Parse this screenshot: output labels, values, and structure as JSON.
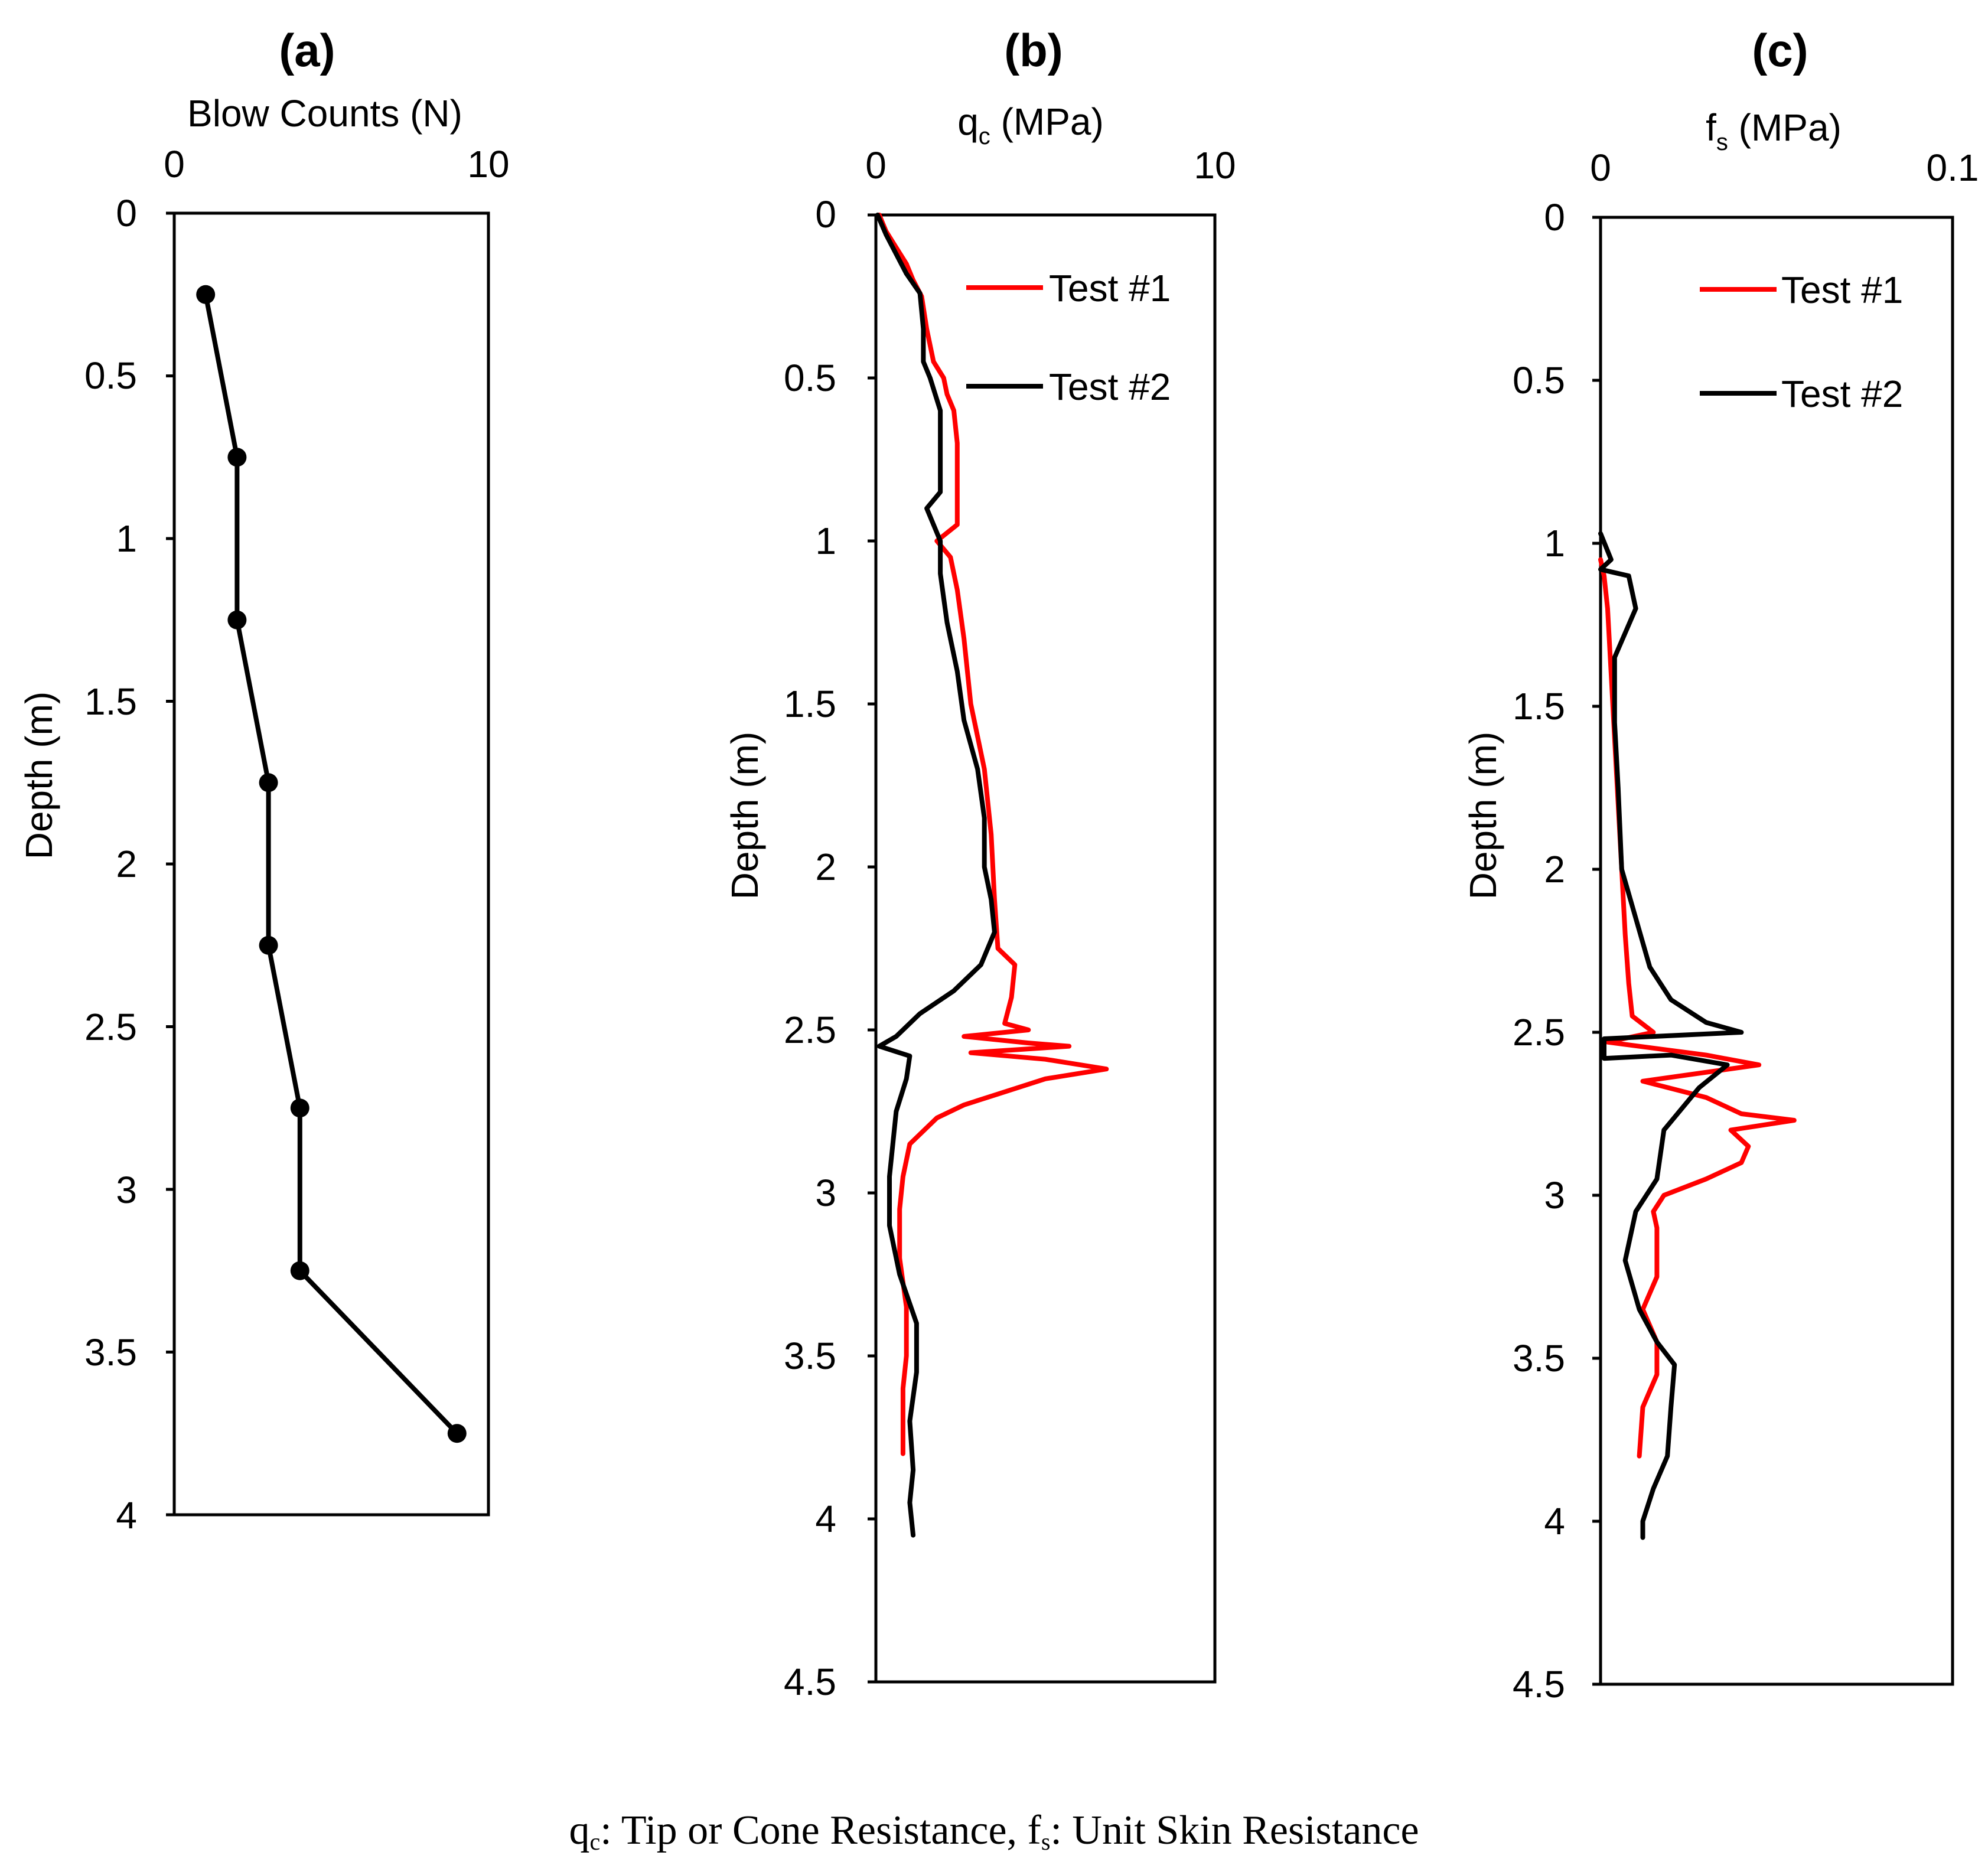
{
  "colors": {
    "test1": "#ff0000",
    "test2": "#000000",
    "axes": "#000000"
  },
  "caption": {
    "q_symbol": "q",
    "q_sub": "c",
    "mid": ": Tip or Cone Resistance, f",
    "f_sub": "s",
    "tail": ": Unit Skin Resistance"
  },
  "chart_data": [
    {
      "id": "a",
      "type": "line",
      "title": "(a)",
      "xlabel": "Blow Counts (N)",
      "ylabel": "Depth (m)",
      "xlim": [
        0,
        10
      ],
      "ylim": [
        4,
        0
      ],
      "xticks": [
        "0",
        "10"
      ],
      "yticks": [
        "0",
        "0.5",
        "1",
        "1.5",
        "2",
        "2.5",
        "3",
        "3.5",
        "4"
      ],
      "series": [
        {
          "name": "Blow Counts",
          "color": "#000000",
          "markers": true,
          "points": [
            [
              1,
              0.25
            ],
            [
              2,
              0.75
            ],
            [
              2,
              1.25
            ],
            [
              3,
              1.75
            ],
            [
              3,
              2.25
            ],
            [
              4,
              2.75
            ],
            [
              4,
              3.25
            ],
            [
              9,
              3.75
            ]
          ]
        }
      ]
    },
    {
      "id": "b",
      "type": "line",
      "title": "(b)",
      "xlabel_main": "q",
      "xlabel_sub": "c",
      "xlabel_unit": " (MPa)",
      "ylabel": "Depth (m)",
      "xlim": [
        0,
        10
      ],
      "ylim": [
        4.5,
        0
      ],
      "xticks": [
        "0",
        "10"
      ],
      "yticks": [
        "0",
        "0.5",
        "1",
        "1.5",
        "2",
        "2.5",
        "3",
        "3.5",
        "4",
        "4.5"
      ],
      "legend": [
        "Test #1",
        "Test #2"
      ],
      "legend_position": "top-right",
      "series": [
        {
          "name": "Test #1",
          "color": "#ff0000",
          "points": [
            [
              0.1,
              0.0
            ],
            [
              0.3,
              0.05
            ],
            [
              0.6,
              0.1
            ],
            [
              0.9,
              0.15
            ],
            [
              1.1,
              0.2
            ],
            [
              1.35,
              0.25
            ],
            [
              1.5,
              0.35
            ],
            [
              1.7,
              0.45
            ],
            [
              2.0,
              0.5
            ],
            [
              2.1,
              0.55
            ],
            [
              2.3,
              0.6
            ],
            [
              2.4,
              0.7
            ],
            [
              2.4,
              0.8
            ],
            [
              2.4,
              0.95
            ],
            [
              1.8,
              1.0
            ],
            [
              2.2,
              1.05
            ],
            [
              2.4,
              1.15
            ],
            [
              2.6,
              1.3
            ],
            [
              2.8,
              1.5
            ],
            [
              3.2,
              1.7
            ],
            [
              3.4,
              1.9
            ],
            [
              3.5,
              2.1
            ],
            [
              3.6,
              2.25
            ],
            [
              4.1,
              2.3
            ],
            [
              4.0,
              2.4
            ],
            [
              3.8,
              2.48
            ],
            [
              4.5,
              2.5
            ],
            [
              2.6,
              2.52
            ],
            [
              4.5,
              2.54
            ],
            [
              5.7,
              2.55
            ],
            [
              2.8,
              2.57
            ],
            [
              5.0,
              2.59
            ],
            [
              6.8,
              2.62
            ],
            [
              5.0,
              2.65
            ],
            [
              3.5,
              2.7
            ],
            [
              2.6,
              2.73
            ],
            [
              1.8,
              2.77
            ],
            [
              1.0,
              2.85
            ],
            [
              0.8,
              2.95
            ],
            [
              0.7,
              3.05
            ],
            [
              0.7,
              3.2
            ],
            [
              0.9,
              3.35
            ],
            [
              0.9,
              3.5
            ],
            [
              0.8,
              3.6
            ],
            [
              0.8,
              3.7
            ],
            [
              0.8,
              3.8
            ]
          ]
        },
        {
          "name": "Test #2",
          "color": "#000000",
          "points": [
            [
              0.05,
              0.0
            ],
            [
              0.3,
              0.06
            ],
            [
              0.6,
              0.12
            ],
            [
              0.9,
              0.18
            ],
            [
              1.3,
              0.24
            ],
            [
              1.4,
              0.35
            ],
            [
              1.4,
              0.45
            ],
            [
              1.6,
              0.5
            ],
            [
              1.9,
              0.6
            ],
            [
              1.9,
              0.75
            ],
            [
              1.9,
              0.85
            ],
            [
              1.5,
              0.9
            ],
            [
              1.9,
              1.0
            ],
            [
              1.9,
              1.1
            ],
            [
              2.1,
              1.25
            ],
            [
              2.4,
              1.4
            ],
            [
              2.6,
              1.55
            ],
            [
              3.0,
              1.7
            ],
            [
              3.2,
              1.85
            ],
            [
              3.2,
              2.0
            ],
            [
              3.4,
              2.1
            ],
            [
              3.5,
              2.2
            ],
            [
              3.1,
              2.3
            ],
            [
              2.3,
              2.38
            ],
            [
              1.3,
              2.45
            ],
            [
              0.6,
              2.52
            ],
            [
              0.1,
              2.55
            ],
            [
              1.0,
              2.58
            ],
            [
              0.9,
              2.65
            ],
            [
              0.6,
              2.75
            ],
            [
              0.5,
              2.85
            ],
            [
              0.4,
              2.95
            ],
            [
              0.4,
              3.1
            ],
            [
              0.7,
              3.25
            ],
            [
              1.2,
              3.4
            ],
            [
              1.2,
              3.55
            ],
            [
              1.0,
              3.7
            ],
            [
              1.1,
              3.85
            ],
            [
              1.0,
              3.95
            ],
            [
              1.1,
              4.05
            ]
          ]
        }
      ]
    },
    {
      "id": "c",
      "type": "line",
      "title": "(c)",
      "xlabel_main": "f",
      "xlabel_sub": "s",
      "xlabel_unit": " (MPa)",
      "ylabel": "Depth (m)",
      "xlim": [
        0,
        0.1
      ],
      "ylim": [
        4.5,
        0
      ],
      "xticks": [
        "0",
        "0.1"
      ],
      "yticks": [
        "0",
        "0.5",
        "1",
        "1.5",
        "2",
        "2.5",
        "3",
        "3.5",
        "4",
        "4.5"
      ],
      "legend": [
        "Test #1",
        "Test #2"
      ],
      "legend_position": "top-right",
      "series": [
        {
          "name": "Test #1",
          "color": "#ff0000",
          "points": [
            [
              0.0,
              1.05
            ],
            [
              0.001,
              1.1
            ],
            [
              0.002,
              1.2
            ],
            [
              0.003,
              1.4
            ],
            [
              0.004,
              1.6
            ],
            [
              0.005,
              1.8
            ],
            [
              0.006,
              2.0
            ],
            [
              0.007,
              2.2
            ],
            [
              0.008,
              2.35
            ],
            [
              0.009,
              2.45
            ],
            [
              0.015,
              2.5
            ],
            [
              0.002,
              2.53
            ],
            [
              0.03,
              2.57
            ],
            [
              0.045,
              2.6
            ],
            [
              0.012,
              2.65
            ],
            [
              0.03,
              2.7
            ],
            [
              0.04,
              2.75
            ],
            [
              0.055,
              2.77
            ],
            [
              0.037,
              2.8
            ],
            [
              0.042,
              2.85
            ],
            [
              0.04,
              2.9
            ],
            [
              0.03,
              2.95
            ],
            [
              0.018,
              3.0
            ],
            [
              0.015,
              3.05
            ],
            [
              0.016,
              3.1
            ],
            [
              0.016,
              3.25
            ],
            [
              0.012,
              3.35
            ],
            [
              0.016,
              3.45
            ],
            [
              0.016,
              3.55
            ],
            [
              0.012,
              3.65
            ],
            [
              0.011,
              3.8
            ]
          ]
        },
        {
          "name": "Test #2",
          "color": "#000000",
          "points": [
            [
              0.0,
              0.97
            ],
            [
              0.003,
              1.05
            ],
            [
              0.0,
              1.08
            ],
            [
              0.008,
              1.1
            ],
            [
              0.01,
              1.2
            ],
            [
              0.004,
              1.35
            ],
            [
              0.004,
              1.55
            ],
            [
              0.005,
              1.75
            ],
            [
              0.006,
              2.0
            ],
            [
              0.01,
              2.15
            ],
            [
              0.014,
              2.3
            ],
            [
              0.02,
              2.4
            ],
            [
              0.03,
              2.47
            ],
            [
              0.04,
              2.5
            ],
            [
              0.001,
              2.52
            ],
            [
              0.001,
              2.58
            ],
            [
              0.02,
              2.57
            ],
            [
              0.036,
              2.6
            ],
            [
              0.028,
              2.67
            ],
            [
              0.018,
              2.8
            ],
            [
              0.016,
              2.95
            ],
            [
              0.01,
              3.05
            ],
            [
              0.007,
              3.2
            ],
            [
              0.011,
              3.35
            ],
            [
              0.016,
              3.45
            ],
            [
              0.021,
              3.52
            ],
            [
              0.02,
              3.65
            ],
            [
              0.019,
              3.8
            ],
            [
              0.015,
              3.9
            ],
            [
              0.012,
              4.0
            ],
            [
              0.012,
              4.05
            ]
          ]
        }
      ]
    }
  ]
}
